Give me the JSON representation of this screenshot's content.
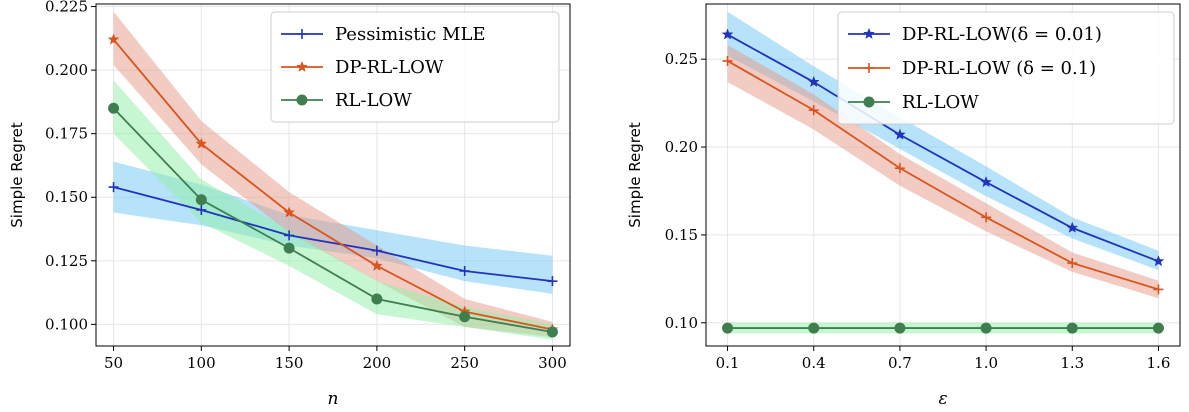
{
  "colors": {
    "blue_line": "#2233bb",
    "blue_band": "#6ec6f5",
    "orange_line": "#d9541e",
    "orange_band": "#e59a86",
    "green_line": "#3f7f4f",
    "green_band": "#8ff0a5",
    "grid": "#e6e6e6"
  },
  "chart_data": [
    {
      "type": "line",
      "xlabel": "n",
      "ylabel": "Simple Regret",
      "xlim": [
        40,
        310
      ],
      "ylim": [
        0.0915,
        0.226
      ],
      "xticks": [
        50,
        100,
        150,
        200,
        250,
        300
      ],
      "xtick_labels": [
        "50",
        "100",
        "150",
        "200",
        "250",
        "300"
      ],
      "yticks": [
        0.1,
        0.125,
        0.15,
        0.175,
        0.2,
        0.225
      ],
      "ytick_labels": [
        "0.100",
        "0.125",
        "0.150",
        "0.175",
        "0.200",
        "0.225"
      ],
      "grid": true,
      "legend_position": "top-right",
      "x": [
        50,
        100,
        150,
        200,
        250,
        300
      ],
      "series": [
        {
          "name": "Pessimistic MLE",
          "marker": "plus",
          "color_key": "blue",
          "values": [
            0.154,
            0.145,
            0.135,
            0.129,
            0.121,
            0.117
          ],
          "lower": [
            0.144,
            0.139,
            0.131,
            0.126,
            0.117,
            0.112
          ],
          "upper": [
            0.164,
            0.155,
            0.143,
            0.137,
            0.131,
            0.127
          ]
        },
        {
          "name": "DP-RL-LOW",
          "marker": "star",
          "color_key": "orange",
          "values": [
            0.212,
            0.171,
            0.144,
            0.123,
            0.105,
            0.098
          ],
          "lower": [
            0.202,
            0.163,
            0.136,
            0.117,
            0.099,
            0.095
          ],
          "upper": [
            0.223,
            0.18,
            0.152,
            0.131,
            0.11,
            0.101
          ]
        },
        {
          "name": "RL-LOW",
          "marker": "circle",
          "color_key": "green",
          "values": [
            0.185,
            0.149,
            0.13,
            0.11,
            0.103,
            0.097
          ],
          "lower": [
            0.175,
            0.14,
            0.123,
            0.104,
            0.099,
            0.094
          ],
          "upper": [
            0.196,
            0.157,
            0.137,
            0.117,
            0.107,
            0.1
          ]
        }
      ]
    },
    {
      "type": "line",
      "xlabel": "ε",
      "ylabel": "Simple Regret",
      "xlim": [
        0.025,
        1.675
      ],
      "ylim": [
        0.0868,
        0.2814
      ],
      "xticks": [
        0.1,
        0.4,
        0.7,
        1.0,
        1.3,
        1.6
      ],
      "xtick_labels": [
        "0.1",
        "0.4",
        "0.7",
        "1.0",
        "1.3",
        "1.6"
      ],
      "yticks": [
        0.1,
        0.15,
        0.2,
        0.25
      ],
      "ytick_labels": [
        "0.10",
        "0.15",
        "0.20",
        "0.25"
      ],
      "grid": true,
      "legend_position": "top-right",
      "x": [
        0.1,
        0.4,
        0.7,
        1.0,
        1.3,
        1.6
      ],
      "series": [
        {
          "name": "DP-RL-LOW(δ = 0.01)",
          "marker": "star",
          "color_key": "blue",
          "values": [
            0.264,
            0.237,
            0.207,
            0.18,
            0.154,
            0.135
          ],
          "lower": [
            0.252,
            0.226,
            0.199,
            0.172,
            0.148,
            0.13
          ],
          "upper": [
            0.277,
            0.246,
            0.217,
            0.189,
            0.16,
            0.141
          ]
        },
        {
          "name": "DP-RL-LOW (δ = 0.1)",
          "marker": "plus",
          "color_key": "orange",
          "values": [
            0.249,
            0.221,
            0.188,
            0.16,
            0.134,
            0.119
          ],
          "lower": [
            0.237,
            0.21,
            0.178,
            0.152,
            0.129,
            0.114
          ],
          "upper": [
            0.258,
            0.23,
            0.196,
            0.168,
            0.14,
            0.124
          ]
        },
        {
          "name": "RL-LOW",
          "marker": "circle",
          "color_key": "green",
          "values": [
            0.097,
            0.097,
            0.097,
            0.097,
            0.097,
            0.097
          ],
          "lower": [
            0.094,
            0.094,
            0.094,
            0.094,
            0.094,
            0.094
          ],
          "upper": [
            0.1,
            0.1,
            0.1,
            0.1,
            0.1,
            0.1
          ]
        }
      ]
    }
  ]
}
